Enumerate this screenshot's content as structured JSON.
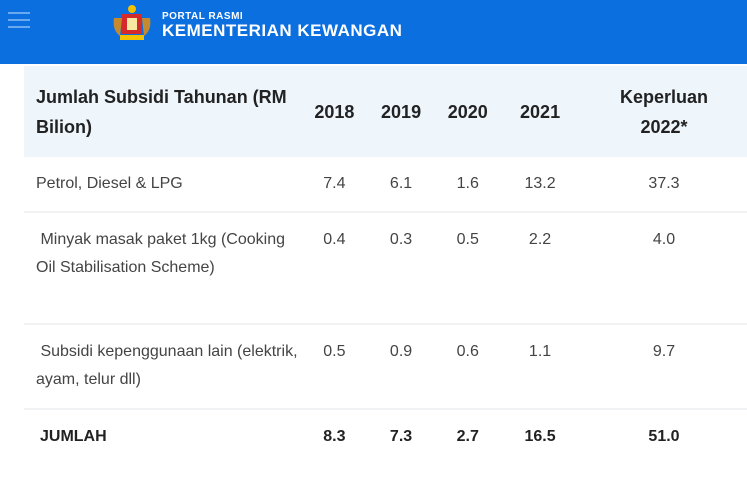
{
  "header": {
    "small": "PORTAL RASMI",
    "title": "KEMENTERIAN KEWANGAN"
  },
  "table": {
    "headers": [
      "Jumlah Subsidi Tahunan (RM Bilion)",
      "2018",
      "2019",
      "2020",
      "2021",
      "Keperluan 2022*"
    ],
    "rows": [
      [
        "Petrol, Diesel & LPG",
        "7.4",
        "6.1",
        "1.6",
        "13.2",
        "37.3"
      ],
      [
        " Minyak masak paket 1kg (Cooking Oil Stabilisation Scheme)",
        "0.4",
        "0.3",
        "0.5",
        "2.2",
        "4.0"
      ],
      [
        " Subsidi kepenggunaan lain (elektrik, ayam, telur dll)",
        "0.5",
        "0.9",
        "0.6",
        "1.1",
        "9.7"
      ],
      [
        "JUMLAH",
        "8.3",
        "7.3",
        "2.7",
        "16.5",
        "51.0"
      ]
    ]
  },
  "colors": {
    "brand": "#0b6fe0",
    "header_bg": "#eef5fb"
  }
}
